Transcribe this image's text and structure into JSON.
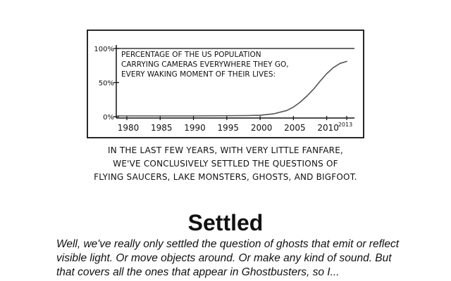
{
  "comic": {
    "title": "Settled",
    "caption_lines": [
      "IN THE LAST FEW YEARS, WITH VERY LITTLE FANFARE,",
      "WE'VE CONCLUSIVELY SETTLED THE QUESTIONS OF",
      "FLYING SAUCERS, LAKE MONSTERS, GHOSTS, AND BIGFOOT."
    ],
    "alt_text": "Well, we've really only settled the question of ghosts that emit or reflect visible light. Or move objects around. Or make any kind of sound. But that covers all the ones that appear in Ghostbusters, so I..."
  },
  "chart_data": {
    "type": "line",
    "title_lines": [
      "PERCENTAGE OF THE US POPULATION",
      "CARRYING CAMERAS EVERYWHERE THEY GO,",
      "EVERY WAKING MOMENT OF THEIR LIVES:"
    ],
    "xlabel": "",
    "ylabel": "",
    "x_ticks": [
      "1980",
      "1985",
      "1990",
      "1995",
      "2000",
      "2005",
      "2010",
      "2013"
    ],
    "y_ticks": [
      "0%",
      "50%",
      "100%"
    ],
    "xlim": [
      1972,
      2015
    ],
    "ylim": [
      0,
      100
    ],
    "grid": false,
    "line_color": "#555555",
    "series": [
      {
        "x": [
          1972,
          1980,
          1990,
          1998,
          2000,
          2002,
          2004,
          2005,
          2006,
          2007,
          2008,
          2009,
          2010,
          2011,
          2012,
          2013
        ],
        "values": [
          1,
          1,
          1,
          1.5,
          2,
          4,
          9,
          14,
          21,
          30,
          40,
          52,
          63,
          72,
          78,
          81
        ]
      }
    ]
  }
}
